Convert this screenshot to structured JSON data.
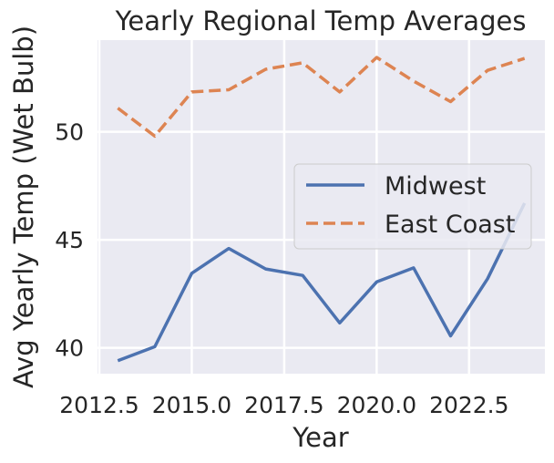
{
  "chart_data": {
    "type": "line",
    "title": "Yearly Regional Temp Averages",
    "xlabel": "Year",
    "ylabel": "Avg Yearly Temp (Wet Bulb)",
    "x": [
      2013,
      2014,
      2015,
      2016,
      2017,
      2018,
      2019,
      2020,
      2021,
      2022,
      2023,
      2024
    ],
    "series": [
      {
        "name": "Midwest",
        "values": [
          39.4,
          40.05,
          43.45,
          44.6,
          43.65,
          43.35,
          41.15,
          43.05,
          43.7,
          40.55,
          43.2,
          46.7
        ],
        "color": "#4c72b0",
        "style": "solid"
      },
      {
        "name": "East Coast",
        "values": [
          51.1,
          49.8,
          51.85,
          51.95,
          52.9,
          53.2,
          51.85,
          53.45,
          52.35,
          51.4,
          52.85,
          53.4
        ],
        "color": "#dd8452",
        "style": "dashed"
      }
    ],
    "xticks": [
      "2012.5",
      "2015.0",
      "2017.5",
      "2020.0",
      "2022.5"
    ],
    "xtick_values": [
      2012.5,
      2015.0,
      2017.5,
      2020.0,
      2022.5
    ],
    "yticks": [
      "40",
      "45",
      "50"
    ],
    "ytick_values": [
      40,
      45,
      50
    ],
    "xlim": [
      2012.45,
      2024.55
    ],
    "ylim": [
      38.8,
      54.25
    ],
    "grid": true,
    "background": "#eaeaf2",
    "legend_position": "center-right"
  }
}
